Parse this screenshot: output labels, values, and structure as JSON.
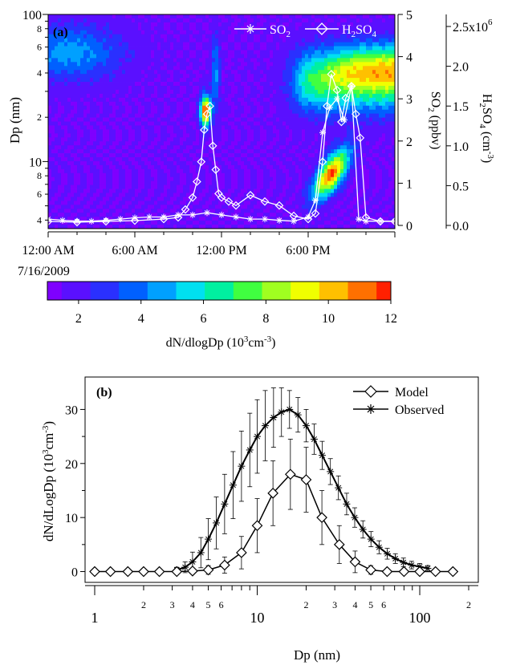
{
  "chart_data": [
    {
      "panel_label": "(a)",
      "type": "heatmap",
      "left_axis": {
        "label": "Dp (nm)",
        "scale": "log",
        "range": [
          3.5,
          100
        ],
        "tick_labels": [
          {
            "v": 100,
            "t": "100",
            "major": true
          },
          {
            "v": 80,
            "t": "8",
            "major": false
          },
          {
            "v": 60,
            "t": "6",
            "major": false
          },
          {
            "v": 40,
            "t": "4",
            "major": false
          },
          {
            "v": 20,
            "t": "2",
            "major": false
          },
          {
            "v": 10,
            "t": "10",
            "major": true
          },
          {
            "v": 8,
            "t": "8",
            "major": false
          },
          {
            "v": 6,
            "t": "6",
            "major": false
          },
          {
            "v": 4,
            "t": "4",
            "major": false
          }
        ]
      },
      "x_axis": {
        "range_hours": [
          0,
          24
        ],
        "ticks": [
          {
            "h": 0,
            "t": "12:00 AM"
          },
          {
            "h": 6,
            "t": "6:00 AM"
          },
          {
            "h": 12,
            "t": "12:00 PM"
          },
          {
            "h": 18,
            "t": "6:00 PM"
          }
        ],
        "date_label": "7/16/2009"
      },
      "so2_axis": {
        "label_main": "SO",
        "label_sub": "2",
        "label_tail": " (ppbv)",
        "range": [
          0,
          5
        ],
        "ticks": [
          "0",
          "1",
          "2",
          "3",
          "4",
          "5"
        ]
      },
      "h2so4_axis": {
        "label_main": "H",
        "label_sub1": "2",
        "label_mid": "SO",
        "label_sub2": "4",
        "label_tail": " (cm",
        "label_sup": "-3",
        "label_end": ")",
        "range": [
          0,
          2500000
        ],
        "ticks": [
          "0.0",
          "0.5",
          "1.0",
          "1.5",
          "2.0",
          "2.5x10"
        ],
        "exponent": "6"
      },
      "legend": {
        "so2_main": "SO",
        "so2_sub": "2",
        "h2so4_main": "H",
        "h2so4_sub1": "2",
        "h2so4_mid": "SO",
        "h2so4_sub2": "4"
      },
      "series": [
        {
          "name": "SO2",
          "x_hours": [
            0,
            1,
            2,
            3,
            4,
            5,
            6,
            7,
            8,
            9,
            10,
            11,
            12,
            13,
            14,
            15,
            16,
            17,
            18,
            18.5,
            19,
            19.5,
            20,
            20.5,
            21,
            21.5,
            22,
            23,
            24
          ],
          "y_ppbv": [
            0.15,
            0.12,
            0.1,
            0.1,
            0.12,
            0.15,
            0.18,
            0.2,
            0.2,
            0.25,
            0.25,
            0.3,
            0.25,
            0.2,
            0.15,
            0.15,
            0.12,
            0.1,
            0.2,
            0.6,
            2.2,
            2.8,
            3.0,
            2.5,
            3.3,
            0.15,
            0.1,
            0.1,
            0.1
          ]
        },
        {
          "name": "H2SO4",
          "x_hours": [
            0,
            2,
            4,
            6,
            8,
            9,
            9.5,
            10,
            10.3,
            10.6,
            10.8,
            11.0,
            11.2,
            11.4,
            11.6,
            11.8,
            12.0,
            12.5,
            13,
            14,
            15,
            16,
            17,
            18,
            18.5,
            19,
            19.3,
            19.6,
            20,
            20.3,
            20.6,
            21,
            21.3,
            21.6,
            22,
            23,
            24
          ],
          "y_cm3": [
            50000,
            40000,
            50000,
            60000,
            80000,
            100000,
            200000,
            350000,
            550000,
            800000,
            1200000,
            1400000,
            1500000,
            1000000,
            700000,
            400000,
            350000,
            300000,
            250000,
            380000,
            300000,
            250000,
            120000,
            80000,
            150000,
            800000,
            1500000,
            1900000,
            1700000,
            1300000,
            1600000,
            1750000,
            1400000,
            1100000,
            100000,
            50000,
            50000
          ]
        }
      ],
      "colorbar": {
        "label_main": "dN/dlogDp (10",
        "label_sup": "3",
        "label_tail": "cm",
        "label_sup2": "-3",
        "label_end": ")",
        "range": [
          1,
          12
        ],
        "ticks": [
          "2",
          "4",
          "6",
          "8",
          "10",
          "12"
        ],
        "colormap": [
          "#7f00ff",
          "#5a10ff",
          "#2a30ff",
          "#0060ff",
          "#00a0ff",
          "#00e0f0",
          "#00f0a0",
          "#40ff40",
          "#a0ff20",
          "#f0ff00",
          "#ffc000",
          "#ff7000",
          "#ff2000"
        ]
      }
    },
    {
      "panel_label": "(b)",
      "type": "line",
      "x_axis": {
        "label": "Dp (nm)",
        "scale": "log",
        "range": [
          1,
          200
        ],
        "tick_labels": [
          {
            "v": 1,
            "t": "1",
            "major": true
          },
          {
            "v": 2,
            "t": "2",
            "major": false
          },
          {
            "v": 3,
            "t": "3",
            "major": false
          },
          {
            "v": 4,
            "t": "4",
            "major": false
          },
          {
            "v": 5,
            "t": "5",
            "major": false
          },
          {
            "v": 6,
            "t": "6",
            "major": false
          },
          {
            "v": 10,
            "t": "10",
            "major": true
          },
          {
            "v": 20,
            "t": "2",
            "major": false
          },
          {
            "v": 30,
            "t": "3",
            "major": false
          },
          {
            "v": 40,
            "t": "4",
            "major": false
          },
          {
            "v": 50,
            "t": "5",
            "major": false
          },
          {
            "v": 60,
            "t": "6",
            "major": false
          },
          {
            "v": 100,
            "t": "100",
            "major": true
          },
          {
            "v": 200,
            "t": "2",
            "major": false
          }
        ]
      },
      "y_axis": {
        "label_main": "dN/dLogDp (10",
        "label_sup": "3",
        "label_tail": "cm",
        "label_sup2": "-3",
        "label_end": ")",
        "range": [
          -2,
          36
        ],
        "ticks": [
          "0",
          "10",
          "20",
          "30"
        ]
      },
      "legend": [
        "Model",
        "Observed"
      ],
      "series": [
        {
          "name": "Model",
          "x": [
            1.0,
            1.25,
            1.6,
            2.0,
            2.5,
            3.2,
            4.0,
            5.0,
            6.3,
            8.0,
            10.0,
            12.5,
            16.0,
            20.0,
            25.0,
            32.0,
            40.0,
            50.0,
            63.0,
            80.0,
            100.0,
            125.0,
            160.0
          ],
          "y": [
            0,
            0,
            0,
            0,
            0,
            0,
            0.1,
            0.3,
            1.2,
            3.5,
            8.5,
            14.5,
            18.0,
            17.0,
            10.0,
            5.0,
            1.8,
            0.3,
            0.0,
            0,
            0,
            0,
            0
          ],
          "err": [
            0,
            0,
            0,
            0,
            0,
            0,
            0.3,
            0.8,
            1.5,
            3.0,
            5.0,
            6.0,
            6.5,
            6.0,
            5.0,
            3.5,
            2.0,
            0.8,
            0.3,
            0,
            0,
            0,
            0
          ]
        },
        {
          "name": "Observed",
          "x": [
            3.2,
            3.6,
            4.0,
            4.5,
            5.0,
            5.6,
            6.3,
            7.1,
            8.0,
            9.0,
            10.0,
            11.2,
            12.6,
            14.1,
            15.8,
            17.8,
            20.0,
            22.4,
            25.1,
            28.2,
            31.6,
            35.5,
            39.8,
            44.7,
            50.1,
            56.2,
            63.1,
            70.8,
            79.4,
            89.1,
            100.0,
            112.0
          ],
          "y": [
            0.3,
            0.8,
            1.8,
            3.5,
            6.0,
            9.0,
            12.5,
            16.0,
            19.5,
            22.5,
            25.0,
            27.0,
            28.5,
            29.5,
            30.0,
            29.0,
            27.0,
            24.5,
            21.5,
            18.5,
            15.5,
            12.5,
            10.0,
            7.8,
            6.0,
            4.5,
            3.3,
            2.4,
            1.7,
            1.2,
            0.9,
            0.6
          ],
          "err": [
            0.5,
            1.0,
            1.8,
            2.8,
            3.8,
            4.8,
            5.5,
            6.2,
            6.5,
            6.8,
            6.8,
            6.5,
            5.5,
            4.5,
            3.5,
            3.2,
            3.0,
            2.8,
            2.6,
            2.4,
            2.2,
            2.0,
            1.8,
            1.6,
            1.4,
            1.2,
            1.0,
            0.9,
            0.8,
            0.7,
            0.6,
            0.5
          ]
        }
      ]
    }
  ]
}
